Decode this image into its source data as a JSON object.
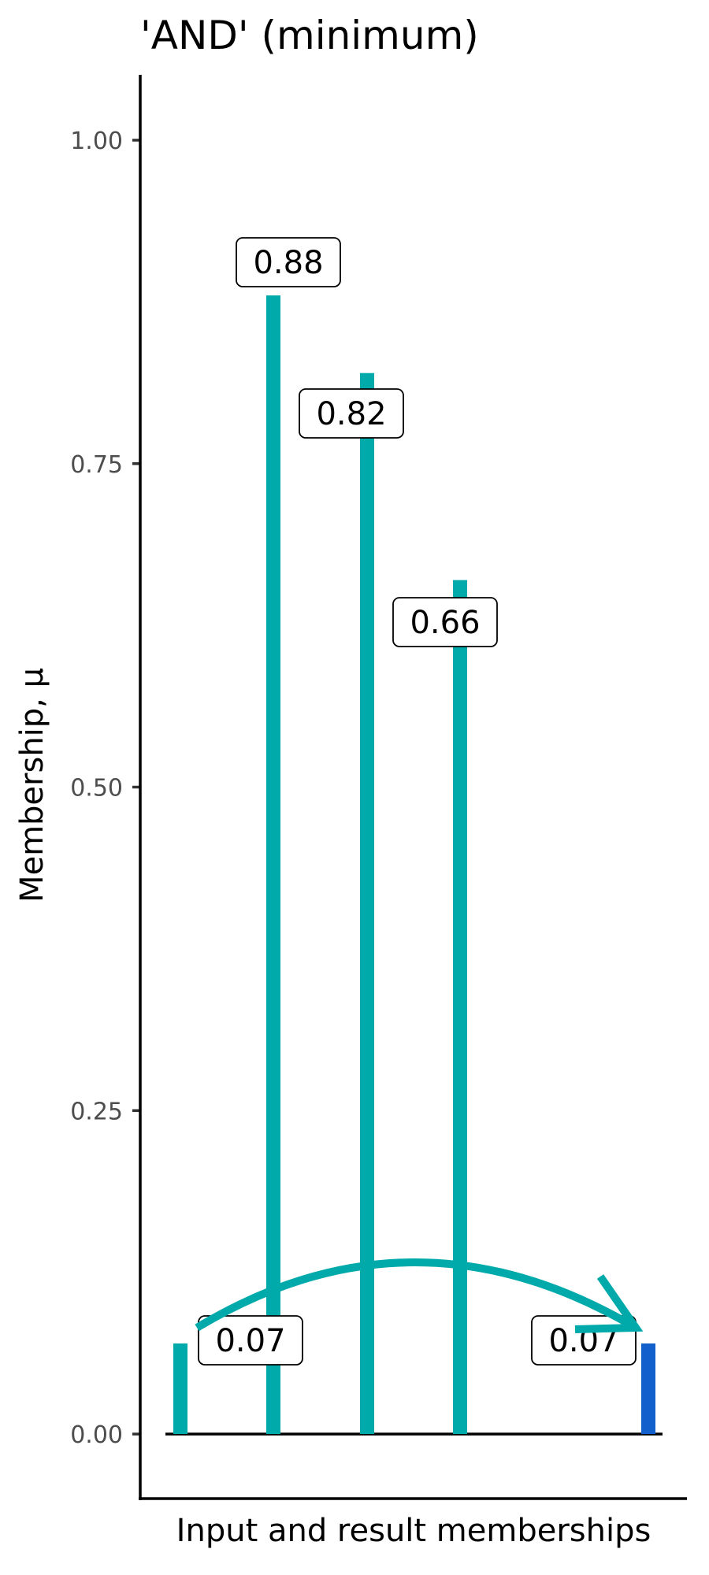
{
  "chart_data": {
    "type": "bar",
    "title": "'AND' (minimum)",
    "xlabel": "Input and result memberships",
    "ylabel": "Membership, μ",
    "ylim": [
      -0.05,
      1.05
    ],
    "yticks": [
      0.0,
      0.25,
      0.5,
      0.75,
      1.0
    ],
    "ytick_labels": [
      "0.00",
      "0.25",
      "0.50",
      "0.75",
      "1.00"
    ],
    "grid": false,
    "inputs": [
      {
        "value": 0.07,
        "label": "0.07",
        "color": "#00AAAA"
      },
      {
        "value": 0.88,
        "label": "0.88",
        "color": "#00AAAA"
      },
      {
        "value": 0.82,
        "label": "0.82",
        "color": "#00AAAA"
      },
      {
        "value": 0.66,
        "label": "0.66",
        "color": "#00AAAA"
      }
    ],
    "result": {
      "value": 0.07,
      "label": "0.07",
      "color": "#1160CC"
    },
    "annotation": "curved arrow from the minimum input to the result",
    "arrow_color": "#00AAAA"
  }
}
